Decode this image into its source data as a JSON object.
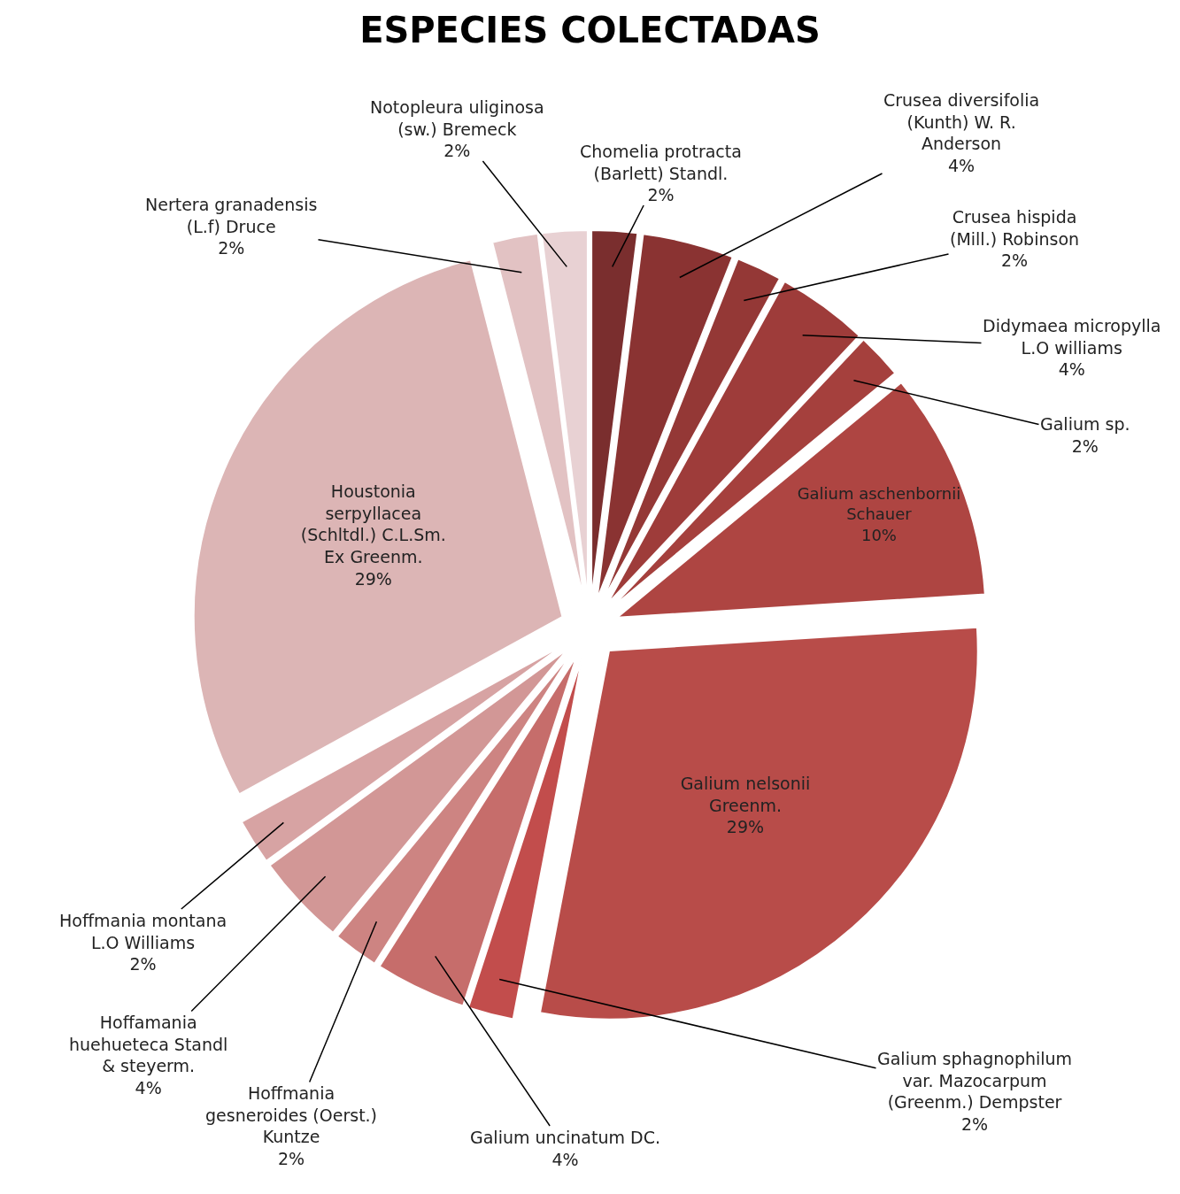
{
  "chart_data": {
    "type": "pie",
    "title": "ESPECIES COLECTADAS",
    "categories": [
      "Chomelia protracta (Barlett) Standl.",
      "Crusea diversifolia (Kunth) W. R. Anderson",
      "Crusea hispida (Mill.) Robinson",
      "Didymaea micropylla L.O williams",
      "Galium sp.",
      "Galium aschenbornii Schauer",
      "Galium nelsonii Greenm.",
      "Galium sphagnophilum var. Mazocarpum (Greenm.) Dempster",
      "Galium uncinatum DC.",
      "Hoffmania gesneroides (Oerst.) Kuntze",
      "Hoffamania huehueteca Standl & steyerm.",
      "Hoffmania montana L.O Williams",
      "Houstonia serpyllacea (Schltdl.) C.L.Sm. Ex Greenm.",
      "Nertera granadensis (L.f) Druce",
      "Notopleura uliginosa (sw.) Bremeck"
    ],
    "values": [
      2,
      4,
      2,
      4,
      2,
      10,
      29,
      2,
      4,
      2,
      4,
      2,
      29,
      2,
      2
    ],
    "value_labels": [
      "2%",
      "4%",
      "2%",
      "4%",
      "2%",
      "10%",
      "29%",
      "2%",
      "4%",
      "2%",
      "4%",
      "2%",
      "29%",
      "2%",
      "2%"
    ],
    "colors": [
      "#7a2e2e",
      "#8a3332",
      "#943836",
      "#9e3c3a",
      "#a5403d",
      "#ae4542",
      "#b84c49",
      "#c24d4c",
      "#c66d6b",
      "#cd8482",
      "#d29796",
      "#d7a3a3",
      "#dcb5b5",
      "#e2c2c3",
      "#e8d1d3"
    ],
    "legend": false
  }
}
